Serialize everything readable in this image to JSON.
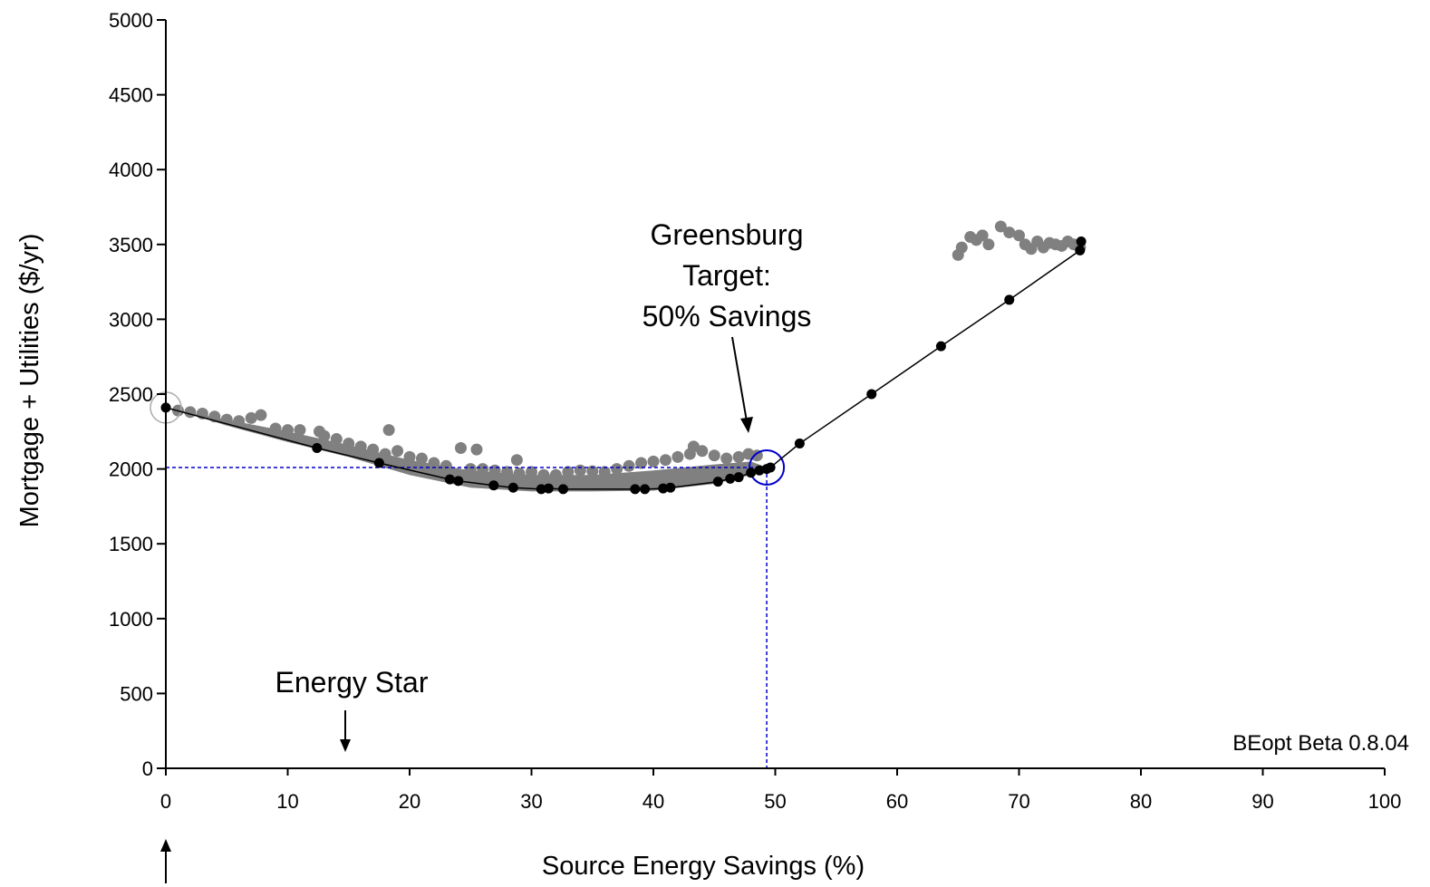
{
  "chart_data": {
    "type": "scatter",
    "title": "",
    "xlabel": "Source Energy Savings (%)",
    "ylabel": "Mortgage + Utilities ($/yr)",
    "xlim": [
      0,
      100
    ],
    "ylim": [
      0,
      5000
    ],
    "x_ticks": [
      "0",
      "10",
      "20",
      "30",
      "40",
      "50",
      "60",
      "70",
      "80",
      "90",
      "100"
    ],
    "y_ticks": [
      "0",
      "500",
      "1000",
      "1500",
      "2000",
      "2500",
      "3000",
      "3500",
      "4000",
      "4500",
      "5000"
    ],
    "grid": false,
    "colors": {
      "cloud": "#808080",
      "optimal": "#000000",
      "target": "#0000cc",
      "reference": "#aaaaaa"
    },
    "series": [
      {
        "role": "optimal",
        "marker": "filled-circle",
        "line": true,
        "points": [
          [
            0,
            2410
          ],
          [
            12.4,
            2140
          ],
          [
            17.5,
            2040
          ],
          [
            23.3,
            1930
          ],
          [
            24.0,
            1920
          ],
          [
            26.9,
            1890
          ],
          [
            28.5,
            1875
          ],
          [
            30.8,
            1865
          ],
          [
            31.4,
            1870
          ],
          [
            32.6,
            1865
          ],
          [
            38.5,
            1865
          ],
          [
            39.3,
            1865
          ],
          [
            40.8,
            1870
          ],
          [
            41.4,
            1875
          ],
          [
            45.3,
            1915
          ],
          [
            46.3,
            1935
          ],
          [
            47.0,
            1945
          ],
          [
            48.0,
            1975
          ],
          [
            48.7,
            1990
          ],
          [
            49.3,
            2000
          ],
          [
            49.6,
            2010
          ],
          [
            52.0,
            2170
          ],
          [
            57.9,
            2500
          ],
          [
            63.6,
            2820
          ],
          [
            69.2,
            3130
          ],
          [
            75.0,
            3460
          ],
          [
            75.1,
            3520
          ]
        ]
      },
      {
        "role": "cloud",
        "marker": "filled-circle",
        "line": false,
        "points": [
          [
            1,
            2390
          ],
          [
            2,
            2380
          ],
          [
            3,
            2370
          ],
          [
            4,
            2350
          ],
          [
            5,
            2330
          ],
          [
            6,
            2320
          ],
          [
            7,
            2340
          ],
          [
            7.8,
            2360
          ],
          [
            9,
            2270
          ],
          [
            10,
            2260
          ],
          [
            11,
            2260
          ],
          [
            12.6,
            2250
          ],
          [
            13,
            2220
          ],
          [
            14,
            2200
          ],
          [
            15,
            2170
          ],
          [
            16,
            2150
          ],
          [
            17,
            2130
          ],
          [
            18,
            2100
          ],
          [
            18.3,
            2260
          ],
          [
            19,
            2120
          ],
          [
            20,
            2080
          ],
          [
            21,
            2070
          ],
          [
            22,
            2040
          ],
          [
            23,
            2020
          ],
          [
            24.2,
            2140
          ],
          [
            25,
            2000
          ],
          [
            25.5,
            2130
          ],
          [
            26,
            2000
          ],
          [
            27,
            1990
          ],
          [
            28,
            1980
          ],
          [
            28.8,
            2060
          ],
          [
            29,
            1970
          ],
          [
            30,
            1980
          ],
          [
            31,
            1960
          ],
          [
            32,
            1960
          ],
          [
            33,
            1980
          ],
          [
            34,
            1990
          ],
          [
            35,
            1985
          ],
          [
            36,
            1980
          ],
          [
            37,
            2000
          ],
          [
            38,
            2020
          ],
          [
            39,
            2040
          ],
          [
            40,
            2050
          ],
          [
            41,
            2060
          ],
          [
            42,
            2080
          ],
          [
            43,
            2100
          ],
          [
            43.3,
            2150
          ],
          [
            44,
            2120
          ],
          [
            45,
            2090
          ],
          [
            46,
            2070
          ],
          [
            47,
            2080
          ],
          [
            47.8,
            2100
          ],
          [
            48.5,
            2090
          ],
          [
            65,
            3430
          ],
          [
            65.3,
            3480
          ],
          [
            66,
            3550
          ],
          [
            66.5,
            3530
          ],
          [
            67,
            3560
          ],
          [
            67.5,
            3500
          ],
          [
            68.5,
            3620
          ],
          [
            69.2,
            3580
          ],
          [
            70,
            3560
          ],
          [
            70.5,
            3500
          ],
          [
            71,
            3470
          ],
          [
            71.5,
            3520
          ],
          [
            72,
            3480
          ],
          [
            72.5,
            3510
          ],
          [
            73,
            3500
          ],
          [
            73.5,
            3490
          ],
          [
            74,
            3520
          ],
          [
            74.5,
            3500
          ],
          [
            75,
            3480
          ]
        ]
      }
    ],
    "band": [
      [
        1,
        2390
      ],
      [
        5,
        2330
      ],
      [
        10,
        2250
      ],
      [
        15,
        2160
      ],
      [
        20,
        2060
      ],
      [
        25,
        1990
      ],
      [
        30,
        1960
      ],
      [
        35,
        1960
      ],
      [
        40,
        1990
      ],
      [
        45,
        2030
      ],
      [
        48,
        2050
      ],
      [
        49,
        2020
      ],
      [
        48,
        1960
      ],
      [
        45,
        1900
      ],
      [
        40,
        1855
      ],
      [
        35,
        1850
      ],
      [
        30,
        1850
      ],
      [
        25,
        1875
      ],
      [
        20,
        1960
      ],
      [
        15,
        2080
      ],
      [
        10,
        2180
      ],
      [
        5,
        2290
      ],
      [
        1,
        2390
      ]
    ],
    "reference_lines": [
      {
        "x": 0,
        "y": 2410,
        "color": "#000000"
      },
      {
        "x": 49.3,
        "y": 2010,
        "color": "#0000cc"
      }
    ],
    "annotations": [
      {
        "lines": [
          "Greensburg",
          "Target:",
          "50% Savings"
        ],
        "arrow_to": [
          48,
          2200
        ]
      },
      {
        "lines": [
          "Energy Star"
        ],
        "arrow_at_x": 14.8
      }
    ],
    "version_label": "BEopt Beta 0.8.04"
  }
}
